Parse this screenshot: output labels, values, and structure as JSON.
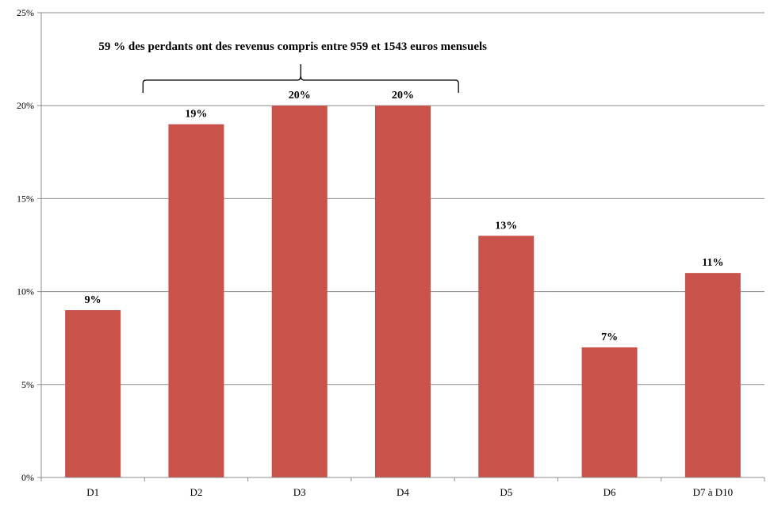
{
  "chart_data": {
    "type": "bar",
    "categories": [
      "D1",
      "D2",
      "D3",
      "D4",
      "D5",
      "D6",
      "D7 à D10"
    ],
    "values": [
      9,
      19,
      20,
      20,
      13,
      7,
      11
    ],
    "data_labels": [
      "9%",
      "19%",
      "20%",
      "20%",
      "13%",
      "7%",
      "11%"
    ],
    "y_ticks": [
      0,
      5,
      10,
      15,
      20,
      25
    ],
    "y_tick_labels": [
      "0%",
      "5%",
      "10%",
      "15%",
      "20%",
      "25%"
    ],
    "ylim": [
      0,
      25
    ],
    "grid": true,
    "title": "",
    "xlabel": "",
    "ylabel": "",
    "annotation": {
      "text": "59 % des perdants ont des revenus compris entre 959 et 1543 euros mensuels",
      "spans_categories": [
        "D2",
        "D3",
        "D4"
      ]
    },
    "colors": {
      "bar": "#c9534b",
      "grid": "#8c8c8c",
      "axis": "#8c8c8c",
      "text": "#000000"
    }
  }
}
